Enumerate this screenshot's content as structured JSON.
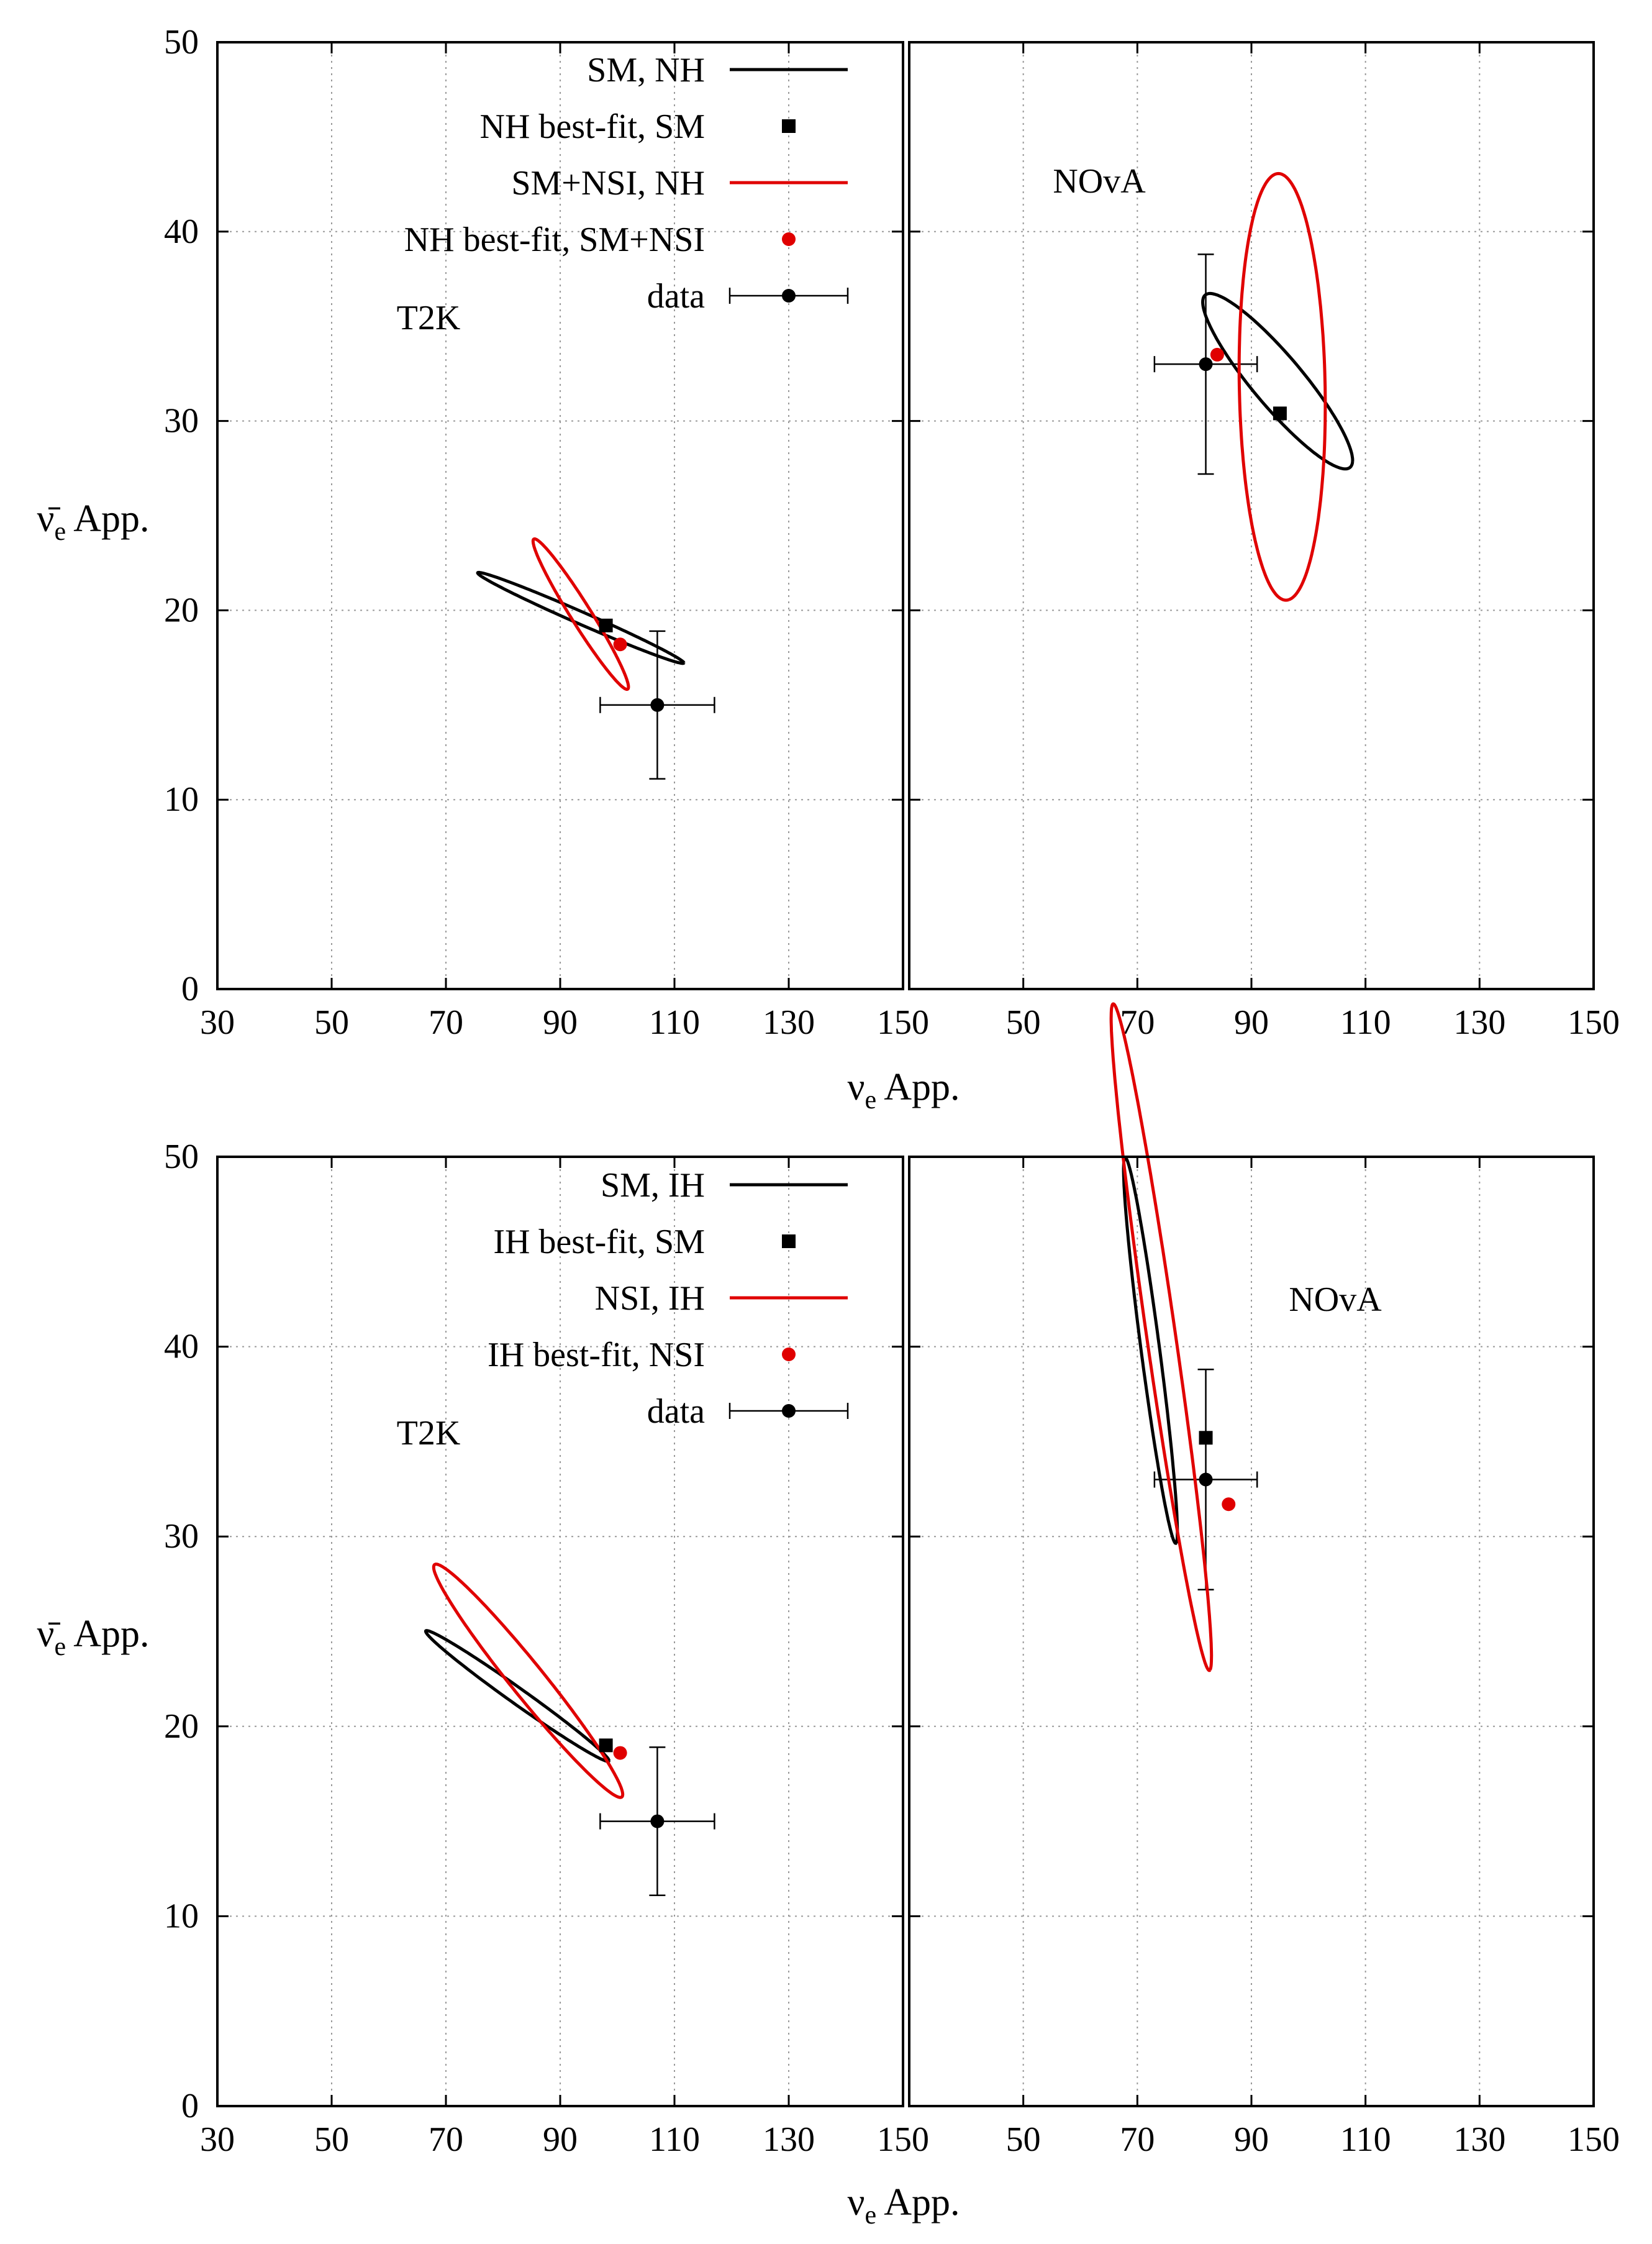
{
  "chart_data": [
    {
      "type": "scatter",
      "figure_row": "top",
      "xlabel_main": "ν",
      "xlabel_sub": "e",
      "xlabel_rest": " App.",
      "ylabel_main": "ν̄",
      "ylabel_sub": "e",
      "ylabel_rest": " App.",
      "ylim": [
        0,
        50
      ],
      "yticks": [
        0,
        10,
        20,
        30,
        40,
        50
      ],
      "grid": true,
      "legend_position": "top-left panel, upper right",
      "legend": [
        {
          "label": "SM, NH",
          "kind": "line",
          "color": "#000000"
        },
        {
          "label": "NH best-fit, SM",
          "kind": "square",
          "color": "#000000"
        },
        {
          "label": "SM+NSI, NH",
          "kind": "line",
          "color": "#e00000"
        },
        {
          "label": "NH best-fit, SM+NSI",
          "kind": "dot",
          "color": "#e00000"
        },
        {
          "label": "data",
          "kind": "errorbar",
          "color": "#000000"
        }
      ],
      "panels": [
        {
          "name": "T2K",
          "label": "T2K",
          "xlim": [
            30,
            150
          ],
          "xticks": [
            30,
            50,
            70,
            90,
            110,
            130,
            150
          ],
          "data": {
            "x": 107,
            "y": 15,
            "xerr": 10,
            "yerr": 3.9
          },
          "bestfit_sm": {
            "x": 98,
            "y": 19.2
          },
          "bestfit_nsi": {
            "x": 100.5,
            "y": 18.2
          },
          "contour_sm": {
            "cx": 93.6,
            "cy": 19.6,
            "a": 18.2,
            "b": 0.35,
            "angle_deg": -7.5
          },
          "contour_nsi": {
            "cx": 93.6,
            "cy": 19.8,
            "a": 9.2,
            "b": 0.9,
            "angle_deg": -25
          }
        },
        {
          "name": "NOvA",
          "label": "NOvA",
          "xlim": [
            30,
            150
          ],
          "xticks": [
            50,
            70,
            90,
            110,
            130,
            150
          ],
          "data": {
            "x": 82,
            "y": 33,
            "xerr": 9,
            "yerr": 5.8
          },
          "bestfit_sm": {
            "x": 95,
            "y": 30.4
          },
          "bestfit_nsi": {
            "x": 84,
            "y": 33.5
          },
          "contour_sm": {
            "cx": 94.6,
            "cy": 32.1,
            "a": 13.8,
            "b": 1.9,
            "angle_deg": -18
          },
          "contour_nsi": {
            "cx": 95.4,
            "cy": 31.8,
            "a": 11.3,
            "b": 7.5,
            "angle_deg": -84
          }
        }
      ]
    },
    {
      "type": "scatter",
      "figure_row": "bottom",
      "xlabel_main": "ν",
      "xlabel_sub": "e",
      "xlabel_rest": " App.",
      "ylabel_main": "ν̄",
      "ylabel_sub": "e",
      "ylabel_rest": " App.",
      "ylim": [
        0,
        50
      ],
      "yticks": [
        0,
        10,
        20,
        30,
        40,
        50
      ],
      "grid": true,
      "legend_position": "bottom-left panel, upper right",
      "legend": [
        {
          "label": "SM, IH",
          "kind": "line",
          "color": "#000000"
        },
        {
          "label": "IH best-fit, SM",
          "kind": "square",
          "color": "#000000"
        },
        {
          "label": "NSI, IH",
          "kind": "line",
          "color": "#e00000"
        },
        {
          "label": "IH best-fit, NSI",
          "kind": "dot",
          "color": "#e00000"
        },
        {
          "label": "data",
          "kind": "errorbar",
          "color": "#000000"
        }
      ],
      "panels": [
        {
          "name": "T2K",
          "label": "T2K",
          "xlim": [
            30,
            150
          ],
          "xticks": [
            30,
            50,
            70,
            90,
            110,
            130,
            150
          ],
          "data": {
            "x": 107,
            "y": 15,
            "xerr": 10,
            "yerr": 3.9
          },
          "bestfit_sm": {
            "x": 98,
            "y": 19
          },
          "bestfit_nsi": {
            "x": 100.5,
            "y": 18.6
          },
          "contour_sm": {
            "cx": 82.5,
            "cy": 21.6,
            "a": 16.4,
            "b": 0.5,
            "angle_deg": -12
          },
          "contour_nsi": {
            "cx": 84.4,
            "cy": 22.4,
            "a": 17.6,
            "b": 1.3,
            "angle_deg": -20
          }
        },
        {
          "name": "NOvA",
          "label": "NOvA",
          "xlim": [
            30,
            150
          ],
          "xticks": [
            50,
            70,
            90,
            110,
            130,
            150
          ],
          "data": {
            "x": 82,
            "y": 33,
            "xerr": 9,
            "yerr": 5.8
          },
          "bestfit_sm": {
            "x": 82,
            "y": 35.2
          },
          "bestfit_nsi": {
            "x": 86,
            "y": 31.7
          },
          "contour_sm": {
            "cx": 72.3,
            "cy": 39.8,
            "a": 11.1,
            "b": 1.5,
            "angle_deg": -66
          },
          "contour_nsi": {
            "cx": 74.2,
            "cy": 40.5,
            "a": 19.5,
            "b": 2.3,
            "angle_deg": -64
          }
        }
      ]
    }
  ]
}
